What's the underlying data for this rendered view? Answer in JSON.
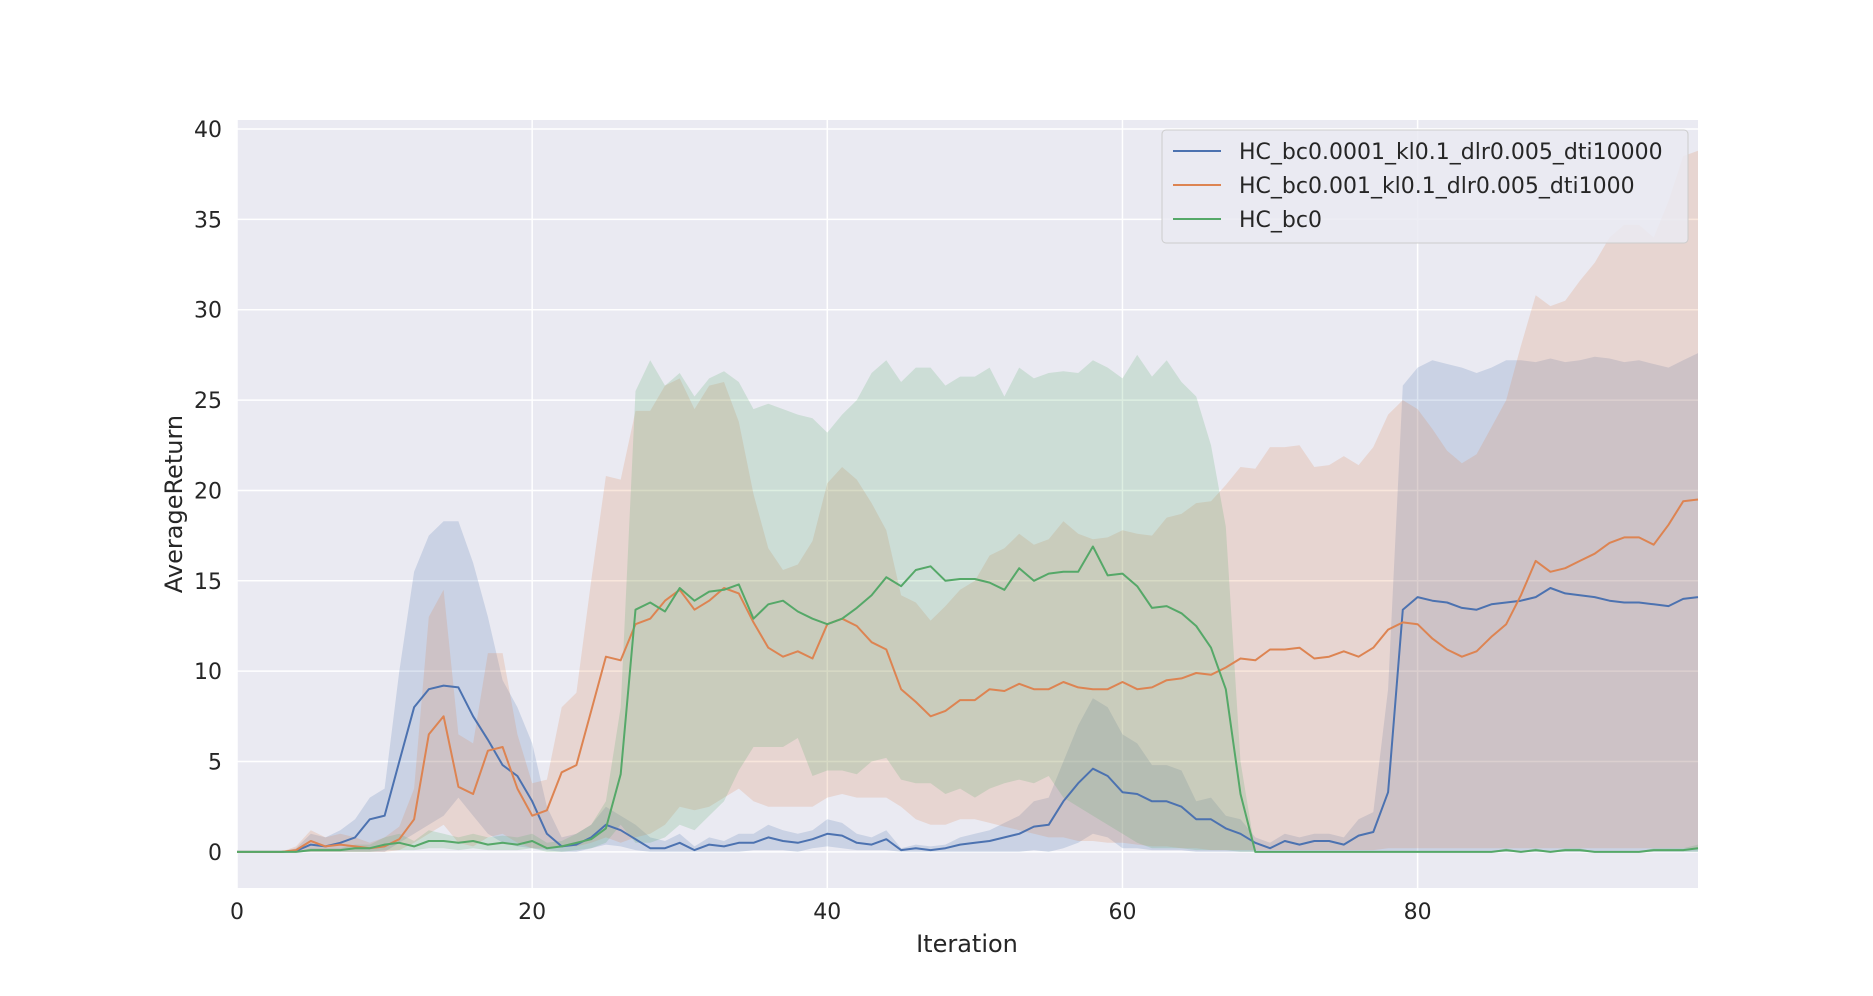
{
  "chart_data": {
    "type": "line",
    "title": "",
    "xlabel": "Iteration",
    "ylabel": "AverageReturn",
    "xlim": [
      0,
      99
    ],
    "ylim": [
      -2,
      40.5
    ],
    "xticks": [
      0,
      20,
      40,
      60,
      80
    ],
    "yticks": [
      0,
      5,
      10,
      15,
      20,
      25,
      30,
      35,
      40
    ],
    "grid": true,
    "legend_position": "top-right",
    "x": [
      0,
      1,
      2,
      3,
      4,
      5,
      6,
      7,
      8,
      9,
      10,
      11,
      12,
      13,
      14,
      15,
      16,
      17,
      18,
      19,
      20,
      21,
      22,
      23,
      24,
      25,
      26,
      27,
      28,
      29,
      30,
      31,
      32,
      33,
      34,
      35,
      36,
      37,
      38,
      39,
      40,
      41,
      42,
      43,
      44,
      45,
      46,
      47,
      48,
      49,
      50,
      51,
      52,
      53,
      54,
      55,
      56,
      57,
      58,
      59,
      60,
      61,
      62,
      63,
      64,
      65,
      66,
      67,
      68,
      69,
      70,
      71,
      72,
      73,
      74,
      75,
      76,
      77,
      78,
      79,
      80,
      81,
      82,
      83,
      84,
      85,
      86,
      87,
      88,
      89,
      90,
      91,
      92,
      93,
      94,
      95,
      96,
      97,
      98,
      99
    ],
    "series": [
      {
        "name": "HC_bc0.0001_kl0.1_dlr0.005_dti10000",
        "color": "#4c72b0",
        "values": [
          0,
          0,
          0,
          0,
          0.05,
          0.4,
          0.3,
          0.5,
          0.8,
          1.8,
          2.0,
          5.0,
          8.0,
          9.0,
          9.2,
          9.1,
          7.5,
          6.2,
          4.8,
          4.2,
          2.8,
          1.0,
          0.3,
          0.4,
          0.8,
          1.5,
          1.2,
          0.7,
          0.2,
          0.2,
          0.5,
          0.1,
          0.4,
          0.3,
          0.5,
          0.5,
          0.8,
          0.6,
          0.5,
          0.7,
          1.0,
          0.9,
          0.5,
          0.4,
          0.7,
          0.1,
          0.2,
          0.1,
          0.2,
          0.4,
          0.5,
          0.6,
          0.8,
          1.0,
          1.4,
          1.5,
          2.8,
          3.8,
          4.6,
          4.2,
          3.3,
          3.2,
          2.8,
          2.8,
          2.5,
          1.8,
          1.8,
          1.3,
          1.0,
          0.5,
          0.2,
          0.6,
          0.4,
          0.6,
          0.6,
          0.4,
          0.9,
          1.1,
          3.3,
          13.4,
          14.1,
          13.9,
          13.8,
          13.5,
          13.4,
          13.7,
          13.8,
          13.9,
          14.1,
          14.6,
          14.3,
          14.2,
          14.1,
          13.9,
          13.8,
          13.8,
          13.7,
          13.6,
          14.0,
          14.1
        ],
        "lower": [
          0,
          0,
          0,
          0,
          0,
          0,
          0,
          0,
          0,
          0,
          0,
          0.5,
          1.0,
          1.5,
          2.0,
          3.0,
          2.0,
          1.0,
          0.5,
          0.3,
          0.2,
          0.1,
          0,
          0,
          0.2,
          0.4,
          0.3,
          0.1,
          0,
          0,
          0,
          0,
          0,
          0,
          0,
          0.1,
          0.1,
          0.1,
          0,
          0.2,
          0.3,
          0.2,
          0.1,
          0.1,
          0.1,
          0,
          0,
          0,
          0,
          0,
          0,
          0,
          0,
          0,
          0.1,
          0,
          0.2,
          0.5,
          1.0,
          0.8,
          0.2,
          0.2,
          0.1,
          0.1,
          0.1,
          0,
          0,
          0,
          0,
          0,
          0,
          0,
          0,
          0,
          0,
          0,
          0,
          0,
          0,
          0,
          0,
          0,
          0,
          0,
          0,
          0,
          0,
          0,
          0,
          0,
          0,
          0,
          0,
          0,
          0,
          0,
          0,
          0,
          0,
          0
        ],
        "upper": [
          0,
          0,
          0,
          0,
          0.2,
          1.0,
          0.8,
          1.2,
          1.8,
          3.0,
          3.5,
          10.0,
          15.5,
          17.5,
          18.3,
          18.3,
          16.0,
          13.0,
          9.5,
          8.0,
          6.0,
          2.5,
          0.8,
          1.0,
          1.5,
          2.5,
          2.0,
          1.5,
          0.8,
          0.6,
          1.0,
          0.3,
          0.8,
          0.6,
          1.0,
          1.0,
          1.5,
          1.2,
          1.0,
          1.2,
          1.8,
          1.6,
          1.0,
          0.8,
          1.2,
          0.2,
          0.4,
          0.3,
          0.4,
          0.8,
          1.0,
          1.2,
          1.6,
          2.0,
          2.8,
          3.0,
          5.0,
          7.0,
          8.5,
          8.0,
          6.5,
          6.0,
          4.8,
          4.8,
          4.5,
          2.8,
          3.0,
          2.0,
          1.8,
          0.8,
          0.5,
          1.0,
          0.8,
          1.0,
          1.0,
          0.8,
          1.8,
          2.2,
          9.0,
          25.8,
          26.8,
          27.2,
          27.0,
          26.8,
          26.5,
          26.8,
          27.2,
          27.2,
          27.1,
          27.3,
          27.1,
          27.2,
          27.4,
          27.3,
          27.1,
          27.2,
          27.0,
          26.8,
          27.2,
          27.6
        ]
      },
      {
        "name": "HC_bc0.001_kl0.1_dlr0.005_dti1000",
        "color": "#dd8452",
        "values": [
          0,
          0,
          0,
          0,
          0.1,
          0.6,
          0.3,
          0.4,
          0.3,
          0.2,
          0.3,
          0.7,
          1.8,
          6.5,
          7.5,
          3.6,
          3.2,
          5.6,
          5.8,
          3.5,
          2.0,
          2.3,
          4.4,
          4.8,
          7.8,
          10.8,
          10.6,
          12.6,
          12.9,
          13.9,
          14.5,
          13.4,
          13.9,
          14.6,
          14.3,
          12.7,
          11.3,
          10.8,
          11.1,
          10.7,
          12.6,
          12.9,
          12.5,
          11.6,
          11.2,
          9.0,
          8.3,
          7.5,
          7.8,
          8.4,
          8.4,
          9.0,
          8.9,
          9.3,
          9.0,
          9.0,
          9.4,
          9.1,
          9.0,
          9.0,
          9.4,
          9.0,
          9.1,
          9.5,
          9.6,
          9.9,
          9.8,
          10.2,
          10.7,
          10.6,
          11.2,
          11.2,
          11.3,
          10.7,
          10.8,
          11.1,
          10.8,
          11.3,
          12.3,
          12.7,
          12.6,
          11.8,
          11.2,
          10.8,
          11.1,
          11.9,
          12.6,
          14.2,
          16.1,
          15.5,
          15.7,
          16.1,
          16.5,
          17.1,
          17.4,
          17.4,
          17.0,
          18.1,
          19.4,
          19.5
        ],
        "lower": [
          0,
          0,
          0,
          0,
          0,
          0,
          0,
          0,
          0,
          0,
          0,
          0.1,
          0.5,
          1.0,
          1.5,
          0.5,
          0.3,
          0.8,
          1.0,
          0.5,
          0.2,
          0.2,
          0.3,
          0.3,
          0.5,
          0.8,
          0.5,
          0.8,
          1.0,
          1.5,
          2.5,
          2.3,
          2.5,
          3.0,
          3.5,
          2.8,
          2.5,
          2.5,
          2.5,
          2.5,
          3.0,
          3.2,
          3.0,
          3.0,
          3.0,
          2.5,
          1.8,
          1.5,
          1.5,
          1.8,
          1.8,
          1.6,
          1.4,
          1.2,
          1.0,
          0.8,
          0.8,
          0.6,
          0.6,
          0.5,
          0.5,
          0.4,
          0.3,
          0.3,
          0.2,
          0.2,
          0.1,
          0.1,
          0.1,
          0.1,
          0.1,
          0.1,
          0.1,
          0.1,
          0.1,
          0.1,
          0.1,
          0.1,
          0.2,
          0.2,
          0.2,
          0.2,
          0.2,
          0.2,
          0.2,
          0.2,
          0.2,
          0.2,
          0.2,
          0.2,
          0.2,
          0.2,
          0.2,
          0.2,
          0.2,
          0.2,
          0.2,
          0.2,
          0.2,
          0.2
        ],
        "upper": [
          0,
          0,
          0,
          0,
          0.3,
          1.2,
          0.8,
          1.0,
          0.8,
          0.5,
          0.8,
          1.4,
          3.5,
          13.0,
          14.5,
          6.5,
          6.0,
          11.0,
          11.0,
          6.5,
          3.8,
          4.0,
          8.0,
          8.8,
          15.0,
          20.8,
          20.6,
          24.4,
          24.4,
          25.8,
          26.2,
          24.5,
          25.8,
          26.0,
          23.8,
          19.8,
          16.8,
          15.6,
          15.9,
          17.2,
          20.4,
          21.3,
          20.6,
          19.3,
          17.8,
          14.2,
          13.8,
          12.8,
          13.6,
          14.5,
          15.0,
          16.4,
          16.8,
          17.6,
          17.0,
          17.3,
          18.3,
          17.6,
          17.3,
          17.4,
          17.8,
          17.6,
          17.5,
          18.5,
          18.7,
          19.3,
          19.4,
          20.3,
          21.3,
          21.2,
          22.4,
          22.4,
          22.5,
          21.3,
          21.4,
          21.9,
          21.4,
          22.4,
          24.2,
          25.0,
          24.5,
          23.4,
          22.2,
          21.5,
          22.0,
          23.5,
          25.0,
          28.0,
          30.8,
          30.2,
          30.5,
          31.6,
          32.6,
          34.0,
          34.7,
          34.7,
          34.0,
          36.0,
          38.5,
          38.8
        ]
      },
      {
        "name": "HC_bc0",
        "color": "#55a868",
        "values": [
          0,
          0,
          0,
          0,
          0,
          0.1,
          0.1,
          0.1,
          0.2,
          0.2,
          0.4,
          0.5,
          0.3,
          0.6,
          0.6,
          0.5,
          0.6,
          0.4,
          0.5,
          0.4,
          0.6,
          0.2,
          0.3,
          0.5,
          0.7,
          1.3,
          4.3,
          13.4,
          13.8,
          13.3,
          14.6,
          13.9,
          14.4,
          14.5,
          14.8,
          12.9,
          13.7,
          13.9,
          13.3,
          12.9,
          12.6,
          12.9,
          13.5,
          14.2,
          15.2,
          14.7,
          15.6,
          15.8,
          15.0,
          15.1,
          15.1,
          14.9,
          14.5,
          15.7,
          15.0,
          15.4,
          15.5,
          15.5,
          16.9,
          15.3,
          15.4,
          14.7,
          13.5,
          13.6,
          13.2,
          12.5,
          11.3,
          9.0,
          3.2,
          0,
          0,
          0,
          0,
          0,
          0,
          0,
          0,
          0,
          0,
          0,
          0,
          0,
          0,
          0,
          0,
          0,
          0.1,
          0,
          0.1,
          0,
          0.1,
          0.1,
          0,
          0,
          0,
          0,
          0.1,
          0.1,
          0.1,
          0.2
        ],
        "lower": [
          0,
          0,
          0,
          0,
          0,
          0,
          0,
          0,
          0,
          0,
          0.1,
          0.1,
          0.1,
          0.2,
          0.2,
          0.1,
          0.2,
          0.1,
          0.1,
          0.1,
          0.2,
          0,
          0,
          0.1,
          0.2,
          0.5,
          1.5,
          0.5,
          0.5,
          0.8,
          1.5,
          1.2,
          2.0,
          2.8,
          4.5,
          5.8,
          5.8,
          5.8,
          6.3,
          4.2,
          4.5,
          4.5,
          4.3,
          5.0,
          5.2,
          4.0,
          3.8,
          3.8,
          3.2,
          3.5,
          3.0,
          3.5,
          3.8,
          4.0,
          3.8,
          4.2,
          3.0,
          2.5,
          2.0,
          1.5,
          1.0,
          0.5,
          0.2,
          0.2,
          0.2,
          0.1,
          0.1,
          0.1,
          0,
          0,
          0,
          0,
          0,
          0,
          0,
          0,
          0,
          0,
          0,
          0,
          0,
          0,
          0,
          0,
          0,
          0,
          0,
          0,
          0,
          0,
          0,
          0,
          0,
          0,
          0,
          0,
          0,
          0,
          0,
          0
        ],
        "upper": [
          0,
          0,
          0,
          0,
          0,
          0.2,
          0.2,
          0.2,
          0.4,
          0.4,
          0.8,
          1.0,
          0.6,
          1.2,
          1.0,
          0.8,
          1.0,
          0.8,
          0.9,
          0.8,
          1.0,
          0.5,
          0.6,
          1.0,
          1.5,
          2.8,
          8.0,
          25.5,
          27.2,
          25.8,
          26.5,
          25.2,
          26.2,
          26.6,
          26.0,
          24.5,
          24.8,
          24.5,
          24.2,
          24.0,
          23.2,
          24.2,
          25.0,
          26.5,
          27.2,
          26.0,
          26.8,
          26.8,
          25.8,
          26.3,
          26.3,
          26.8,
          25.2,
          26.8,
          26.2,
          26.5,
          26.6,
          26.5,
          27.2,
          26.8,
          26.2,
          27.5,
          26.3,
          27.2,
          26.0,
          25.2,
          22.5,
          18.0,
          5.0,
          0,
          0,
          0,
          0,
          0,
          0,
          0,
          0,
          0,
          0,
          0,
          0,
          0,
          0,
          0,
          0,
          0,
          0.2,
          0,
          0.2,
          0,
          0.2,
          0.2,
          0,
          0,
          0,
          0,
          0.2,
          0.2,
          0.2,
          0.4
        ]
      }
    ]
  }
}
